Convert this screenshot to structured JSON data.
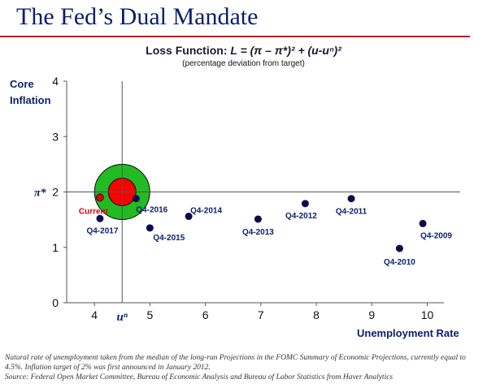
{
  "slide": {
    "title": "The Fed’s Dual Mandate"
  },
  "chart_data": {
    "type": "scatter",
    "title_prefix": "Loss Function: ",
    "title_formula": "L = (π – π*)² + (u-uⁿ)²",
    "subtitle": "(percentage deviation  from target)",
    "ylabel_lines": [
      "Core",
      "Inflation"
    ],
    "xlabel": "Unemployment Rate",
    "xlim": [
      3.5,
      10.3
    ],
    "ylim": [
      0,
      4
    ],
    "x_ticks": [
      4,
      5,
      6,
      7,
      8,
      9,
      10
    ],
    "y_ticks": [
      0,
      1,
      2,
      3,
      4
    ],
    "grid": false,
    "target": {
      "inflation": 2,
      "inflation_label": "π*",
      "unemployment": 4.5,
      "unemployment_label": "uⁿ"
    },
    "current": {
      "label": "Current",
      "x": 4.1,
      "y": 1.9,
      "color": "#e00000"
    },
    "points": [
      {
        "label": "Q4-2009",
        "x": 9.92,
        "y": 1.43
      },
      {
        "label": "Q4-2010",
        "x": 9.5,
        "y": 0.98
      },
      {
        "label": "Q4-2011",
        "x": 8.63,
        "y": 1.88
      },
      {
        "label": "Q4-2012",
        "x": 7.8,
        "y": 1.79
      },
      {
        "label": "Q4-2013",
        "x": 6.95,
        "y": 1.51
      },
      {
        "label": "Q4-2014",
        "x": 5.7,
        "y": 1.56
      },
      {
        "label": "Q4-2015",
        "x": 5.0,
        "y": 1.35
      },
      {
        "label": "Q4-2016",
        "x": 4.75,
        "y": 1.88
      },
      {
        "label": "Q4-2017",
        "x": 4.1,
        "y": 1.52
      }
    ],
    "colors": {
      "points": "#0a0a50",
      "inner_circle": "#ff0000",
      "outer_circle": "#22bb22",
      "axis": "#555555",
      "labels": "#0b1f6e"
    }
  },
  "footnote": {
    "line1": "Natural rate of unemployment taken from the median of the long-run Projections in the FOMC  Summary of Economic Projections, currently equal to 4.5%.  Inflation target of 2% was first announced in January 2012.",
    "line2": "Source: Federal Open Market Committee, Bureau of Economic Analysis and Bureau of Labor Statistics from Haver Analytics"
  }
}
